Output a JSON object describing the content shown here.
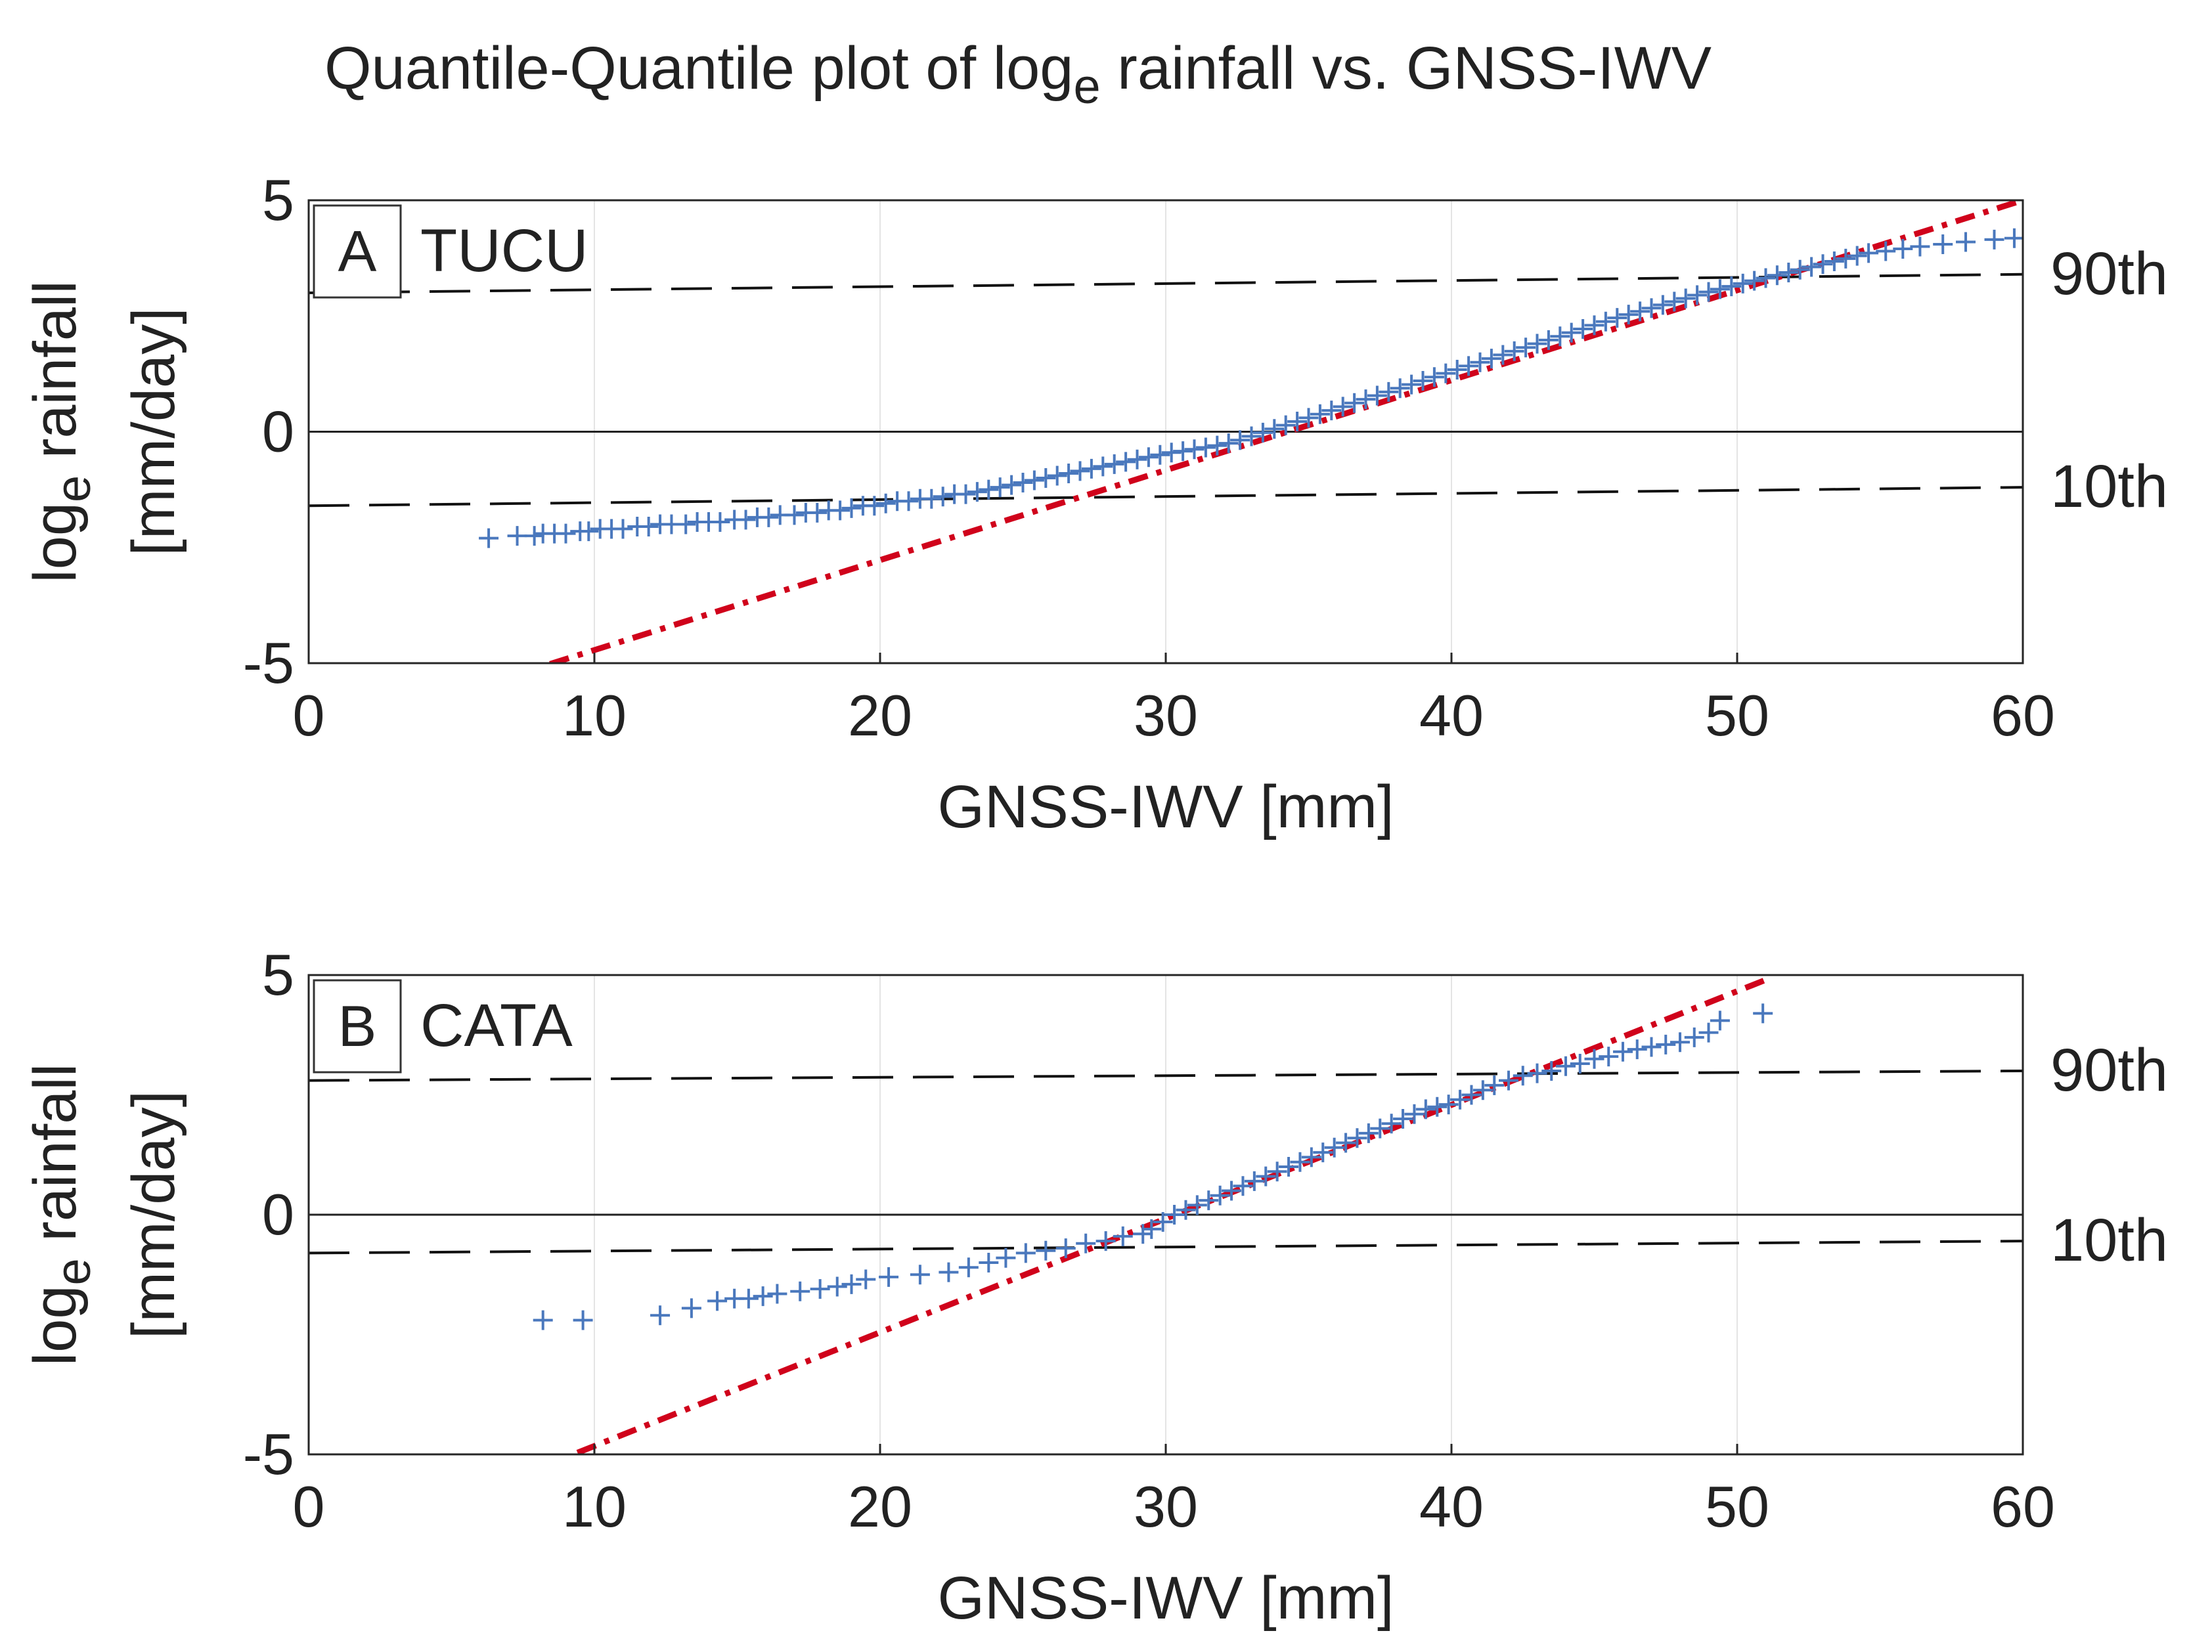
{
  "title": {
    "prefix": "Quantile-Quantile plot of log",
    "subscript": "e",
    "suffix": " rainfall vs. GNSS-IWV"
  },
  "colors": {
    "markers": "#4a78bd",
    "fit_line": "#d0021b",
    "percentile_lines": "#111111"
  },
  "chart_data": [
    {
      "type": "scatter",
      "panel": "A",
      "station": "TUCU",
      "xlabel": "GNSS-IWV [mm]",
      "ylabel_main": "log",
      "ylabel_sub": "e",
      "ylabel_rest": " rainfall",
      "ylabel_line2": "[mm/day]",
      "xlim": [
        0,
        60
      ],
      "ylim": [
        -5,
        5
      ],
      "xticks": [
        "0",
        "10",
        "20",
        "30",
        "40",
        "50",
        "60"
      ],
      "yticks": [
        "5",
        "0",
        "-5"
      ],
      "marker": "+",
      "reference_line": {
        "x": [
          7,
          60
        ],
        "y": [
          -5.3,
          5
        ]
      },
      "percentile_lines": [
        {
          "label": "90th",
          "y_start": 3.0,
          "y_end": 3.4
        },
        {
          "label": "10th",
          "y_start": -1.6,
          "y_end": -1.2
        }
      ],
      "points": [
        [
          6.3,
          -2.3
        ],
        [
          7.3,
          -2.25
        ],
        [
          7.9,
          -2.25
        ],
        [
          8.2,
          -2.2
        ],
        [
          8.6,
          -2.2
        ],
        [
          9.0,
          -2.2
        ],
        [
          9.5,
          -2.15
        ],
        [
          9.8,
          -2.15
        ],
        [
          10.2,
          -2.1
        ],
        [
          10.6,
          -2.1
        ],
        [
          11.0,
          -2.1
        ],
        [
          11.5,
          -2.05
        ],
        [
          11.9,
          -2.05
        ],
        [
          12.3,
          -2.0
        ],
        [
          12.7,
          -2.0
        ],
        [
          13.2,
          -2.0
        ],
        [
          13.6,
          -1.95
        ],
        [
          14.0,
          -1.95
        ],
        [
          14.4,
          -1.95
        ],
        [
          14.9,
          -1.9
        ],
        [
          15.3,
          -1.9
        ],
        [
          15.7,
          -1.85
        ],
        [
          16.1,
          -1.85
        ],
        [
          16.5,
          -1.8
        ],
        [
          17.0,
          -1.8
        ],
        [
          17.4,
          -1.75
        ],
        [
          17.8,
          -1.75
        ],
        [
          18.2,
          -1.7
        ],
        [
          18.6,
          -1.7
        ],
        [
          19.0,
          -1.65
        ],
        [
          19.4,
          -1.6
        ],
        [
          19.8,
          -1.6
        ],
        [
          20.2,
          -1.55
        ],
        [
          20.6,
          -1.5
        ],
        [
          21.0,
          -1.5
        ],
        [
          21.4,
          -1.45
        ],
        [
          21.8,
          -1.45
        ],
        [
          22.2,
          -1.4
        ],
        [
          22.6,
          -1.35
        ],
        [
          23.0,
          -1.35
        ],
        [
          23.4,
          -1.3
        ],
        [
          23.8,
          -1.25
        ],
        [
          24.2,
          -1.2
        ],
        [
          24.6,
          -1.15
        ],
        [
          25.0,
          -1.1
        ],
        [
          25.4,
          -1.05
        ],
        [
          25.8,
          -1.0
        ],
        [
          26.2,
          -0.95
        ],
        [
          26.6,
          -0.9
        ],
        [
          27.0,
          -0.85
        ],
        [
          27.4,
          -0.8
        ],
        [
          27.8,
          -0.75
        ],
        [
          28.2,
          -0.7
        ],
        [
          28.6,
          -0.65
        ],
        [
          29.0,
          -0.6
        ],
        [
          29.4,
          -0.55
        ],
        [
          29.8,
          -0.5
        ],
        [
          30.2,
          -0.45
        ],
        [
          30.6,
          -0.42
        ],
        [
          31.0,
          -0.38
        ],
        [
          31.4,
          -0.34
        ],
        [
          31.8,
          -0.3
        ],
        [
          32.2,
          -0.25
        ],
        [
          32.6,
          -0.18
        ],
        [
          33.0,
          -0.1
        ],
        [
          33.4,
          -0.02
        ],
        [
          33.8,
          0.06
        ],
        [
          34.2,
          0.14
        ],
        [
          34.6,
          0.22
        ],
        [
          35.0,
          0.3
        ],
        [
          35.4,
          0.38
        ],
        [
          35.8,
          0.46
        ],
        [
          36.2,
          0.54
        ],
        [
          36.6,
          0.62
        ],
        [
          37.0,
          0.7
        ],
        [
          37.4,
          0.78
        ],
        [
          37.8,
          0.86
        ],
        [
          38.2,
          0.94
        ],
        [
          38.6,
          1.02
        ],
        [
          39.0,
          1.1
        ],
        [
          39.4,
          1.18
        ],
        [
          39.8,
          1.26
        ],
        [
          40.2,
          1.34
        ],
        [
          40.6,
          1.42
        ],
        [
          41.0,
          1.5
        ],
        [
          41.4,
          1.58
        ],
        [
          41.8,
          1.66
        ],
        [
          42.2,
          1.74
        ],
        [
          42.6,
          1.82
        ],
        [
          43.0,
          1.9
        ],
        [
          43.4,
          1.98
        ],
        [
          43.8,
          2.06
        ],
        [
          44.2,
          2.14
        ],
        [
          44.6,
          2.22
        ],
        [
          45.0,
          2.3
        ],
        [
          45.4,
          2.38
        ],
        [
          45.8,
          2.46
        ],
        [
          46.2,
          2.53
        ],
        [
          46.6,
          2.6
        ],
        [
          47.0,
          2.67
        ],
        [
          47.4,
          2.74
        ],
        [
          47.8,
          2.81
        ],
        [
          48.2,
          2.88
        ],
        [
          48.6,
          2.95
        ],
        [
          49.0,
          3.02
        ],
        [
          49.4,
          3.08
        ],
        [
          49.8,
          3.14
        ],
        [
          50.2,
          3.2
        ],
        [
          50.6,
          3.26
        ],
        [
          51.0,
          3.32
        ],
        [
          51.4,
          3.38
        ],
        [
          51.8,
          3.44
        ],
        [
          52.2,
          3.5
        ],
        [
          52.6,
          3.56
        ],
        [
          53.0,
          3.62
        ],
        [
          53.4,
          3.68
        ],
        [
          53.8,
          3.74
        ],
        [
          54.2,
          3.8
        ],
        [
          54.6,
          3.86
        ],
        [
          55.2,
          3.9
        ],
        [
          55.8,
          3.95
        ],
        [
          56.4,
          4.0
        ],
        [
          57.2,
          4.05
        ],
        [
          58.0,
          4.1
        ],
        [
          59.0,
          4.15
        ],
        [
          59.7,
          4.18
        ]
      ]
    },
    {
      "type": "scatter",
      "panel": "B",
      "station": "CATA",
      "xlabel": "GNSS-IWV [mm]",
      "ylabel_main": "log",
      "ylabel_sub": "e",
      "ylabel_rest": " rainfall",
      "ylabel_line2": "[mm/day]",
      "xlim": [
        0,
        60
      ],
      "ylim": [
        -5,
        5
      ],
      "xticks": [
        "0",
        "10",
        "20",
        "30",
        "40",
        "50",
        "60"
      ],
      "yticks": [
        "5",
        "0",
        "-5"
      ],
      "marker": "+",
      "reference_line": {
        "x": [
          8,
          51
        ],
        "y": [
          -5.3,
          4.9
        ]
      },
      "percentile_lines": [
        {
          "label": "90th",
          "y_start": 2.8,
          "y_end": 3.0
        },
        {
          "label": "10th",
          "y_start": -0.8,
          "y_end": -0.55
        }
      ],
      "points": [
        [
          8.2,
          -2.2
        ],
        [
          9.6,
          -2.2
        ],
        [
          12.3,
          -2.1
        ],
        [
          13.4,
          -1.95
        ],
        [
          14.3,
          -1.8
        ],
        [
          14.9,
          -1.75
        ],
        [
          15.4,
          -1.75
        ],
        [
          15.9,
          -1.7
        ],
        [
          16.4,
          -1.65
        ],
        [
          17.2,
          -1.6
        ],
        [
          17.9,
          -1.55
        ],
        [
          18.5,
          -1.5
        ],
        [
          19.0,
          -1.45
        ],
        [
          19.5,
          -1.35
        ],
        [
          20.3,
          -1.3
        ],
        [
          21.4,
          -1.25
        ],
        [
          22.4,
          -1.2
        ],
        [
          23.1,
          -1.1
        ],
        [
          23.8,
          -1.0
        ],
        [
          24.4,
          -0.9
        ],
        [
          25.1,
          -0.8
        ],
        [
          25.8,
          -0.75
        ],
        [
          26.5,
          -0.7
        ],
        [
          27.2,
          -0.6
        ],
        [
          27.9,
          -0.55
        ],
        [
          28.5,
          -0.45
        ],
        [
          29.2,
          -0.4
        ],
        [
          29.5,
          -0.3
        ],
        [
          29.9,
          -0.15
        ],
        [
          30.3,
          0.0
        ],
        [
          30.7,
          0.1
        ],
        [
          31.1,
          0.2
        ],
        [
          31.5,
          0.3
        ],
        [
          31.9,
          0.4
        ],
        [
          32.3,
          0.5
        ],
        [
          32.7,
          0.6
        ],
        [
          33.1,
          0.7
        ],
        [
          33.5,
          0.8
        ],
        [
          33.9,
          0.9
        ],
        [
          34.3,
          1.0
        ],
        [
          34.7,
          1.1
        ],
        [
          35.1,
          1.2
        ],
        [
          35.5,
          1.3
        ],
        [
          35.9,
          1.4
        ],
        [
          36.3,
          1.5
        ],
        [
          36.7,
          1.6
        ],
        [
          37.1,
          1.7
        ],
        [
          37.5,
          1.8
        ],
        [
          37.9,
          1.9
        ],
        [
          38.3,
          2.0
        ],
        [
          38.7,
          2.1
        ],
        [
          39.1,
          2.2
        ],
        [
          39.5,
          2.25
        ],
        [
          39.9,
          2.3
        ],
        [
          40.3,
          2.4
        ],
        [
          40.7,
          2.5
        ],
        [
          41.1,
          2.6
        ],
        [
          41.5,
          2.7
        ],
        [
          42.0,
          2.8
        ],
        [
          42.5,
          2.9
        ],
        [
          43.0,
          2.95
        ],
        [
          43.5,
          3.0
        ],
        [
          44.0,
          3.1
        ],
        [
          44.5,
          3.15
        ],
        [
          45.0,
          3.25
        ],
        [
          45.5,
          3.3
        ],
        [
          46.0,
          3.4
        ],
        [
          46.5,
          3.45
        ],
        [
          47.0,
          3.5
        ],
        [
          47.5,
          3.55
        ],
        [
          48.0,
          3.6
        ],
        [
          48.5,
          3.7
        ],
        [
          49.0,
          3.8
        ],
        [
          49.4,
          4.05
        ],
        [
          50.9,
          4.2
        ]
      ]
    }
  ]
}
